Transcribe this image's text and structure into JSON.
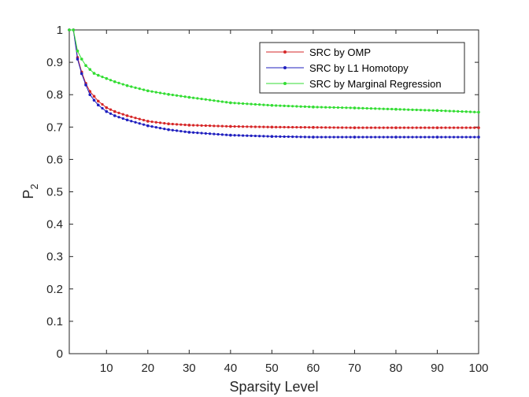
{
  "chart_data": {
    "type": "line",
    "xlabel": "Sparsity Level",
    "ylabel": "P",
    "ylabel_subscript": "2",
    "xlim": [
      1,
      100
    ],
    "ylim": [
      0,
      1
    ],
    "xticks": [
      10,
      20,
      30,
      40,
      50,
      60,
      70,
      80,
      90,
      100
    ],
    "yticks": [
      0,
      0.1,
      0.2,
      0.3,
      0.4,
      0.5,
      0.6,
      0.7,
      0.8,
      0.9,
      1
    ],
    "ytick_labels": [
      "0",
      "0.1",
      "0.2",
      "0.3",
      "0.4",
      "0.5",
      "0.6",
      "0.7",
      "0.8",
      "0.9",
      "1"
    ],
    "legend_position": "top-right",
    "grid": false,
    "series": [
      {
        "name": "SRC by OMP",
        "color": "#d62728",
        "x": [
          1,
          2,
          3,
          4,
          5,
          6,
          7,
          8,
          10,
          12,
          15,
          20,
          25,
          30,
          40,
          50,
          60,
          70,
          80,
          90,
          100
        ],
        "y": [
          1.0,
          1.0,
          0.915,
          0.87,
          0.835,
          0.81,
          0.795,
          0.78,
          0.76,
          0.748,
          0.735,
          0.718,
          0.71,
          0.706,
          0.702,
          0.7,
          0.699,
          0.698,
          0.698,
          0.698,
          0.698
        ]
      },
      {
        "name": "SRC by L1 Homotopy",
        "color": "#1f1fbf",
        "x": [
          1,
          2,
          3,
          4,
          5,
          6,
          7,
          8,
          10,
          12,
          15,
          20,
          25,
          30,
          40,
          50,
          60,
          70,
          80,
          90,
          100
        ],
        "y": [
          1.0,
          1.0,
          0.91,
          0.865,
          0.83,
          0.8,
          0.783,
          0.768,
          0.748,
          0.735,
          0.722,
          0.704,
          0.692,
          0.684,
          0.675,
          0.671,
          0.669,
          0.669,
          0.669,
          0.669,
          0.669
        ]
      },
      {
        "name": "SRC by Marginal Regression",
        "color": "#33dd33",
        "x": [
          1,
          2,
          3,
          4,
          5,
          6,
          7,
          8,
          10,
          12,
          15,
          20,
          25,
          30,
          40,
          50,
          60,
          70,
          80,
          90,
          100
        ],
        "y": [
          1.0,
          1.0,
          0.935,
          0.91,
          0.89,
          0.878,
          0.866,
          0.86,
          0.85,
          0.84,
          0.828,
          0.812,
          0.801,
          0.792,
          0.775,
          0.767,
          0.762,
          0.759,
          0.755,
          0.751,
          0.746
        ]
      }
    ]
  }
}
